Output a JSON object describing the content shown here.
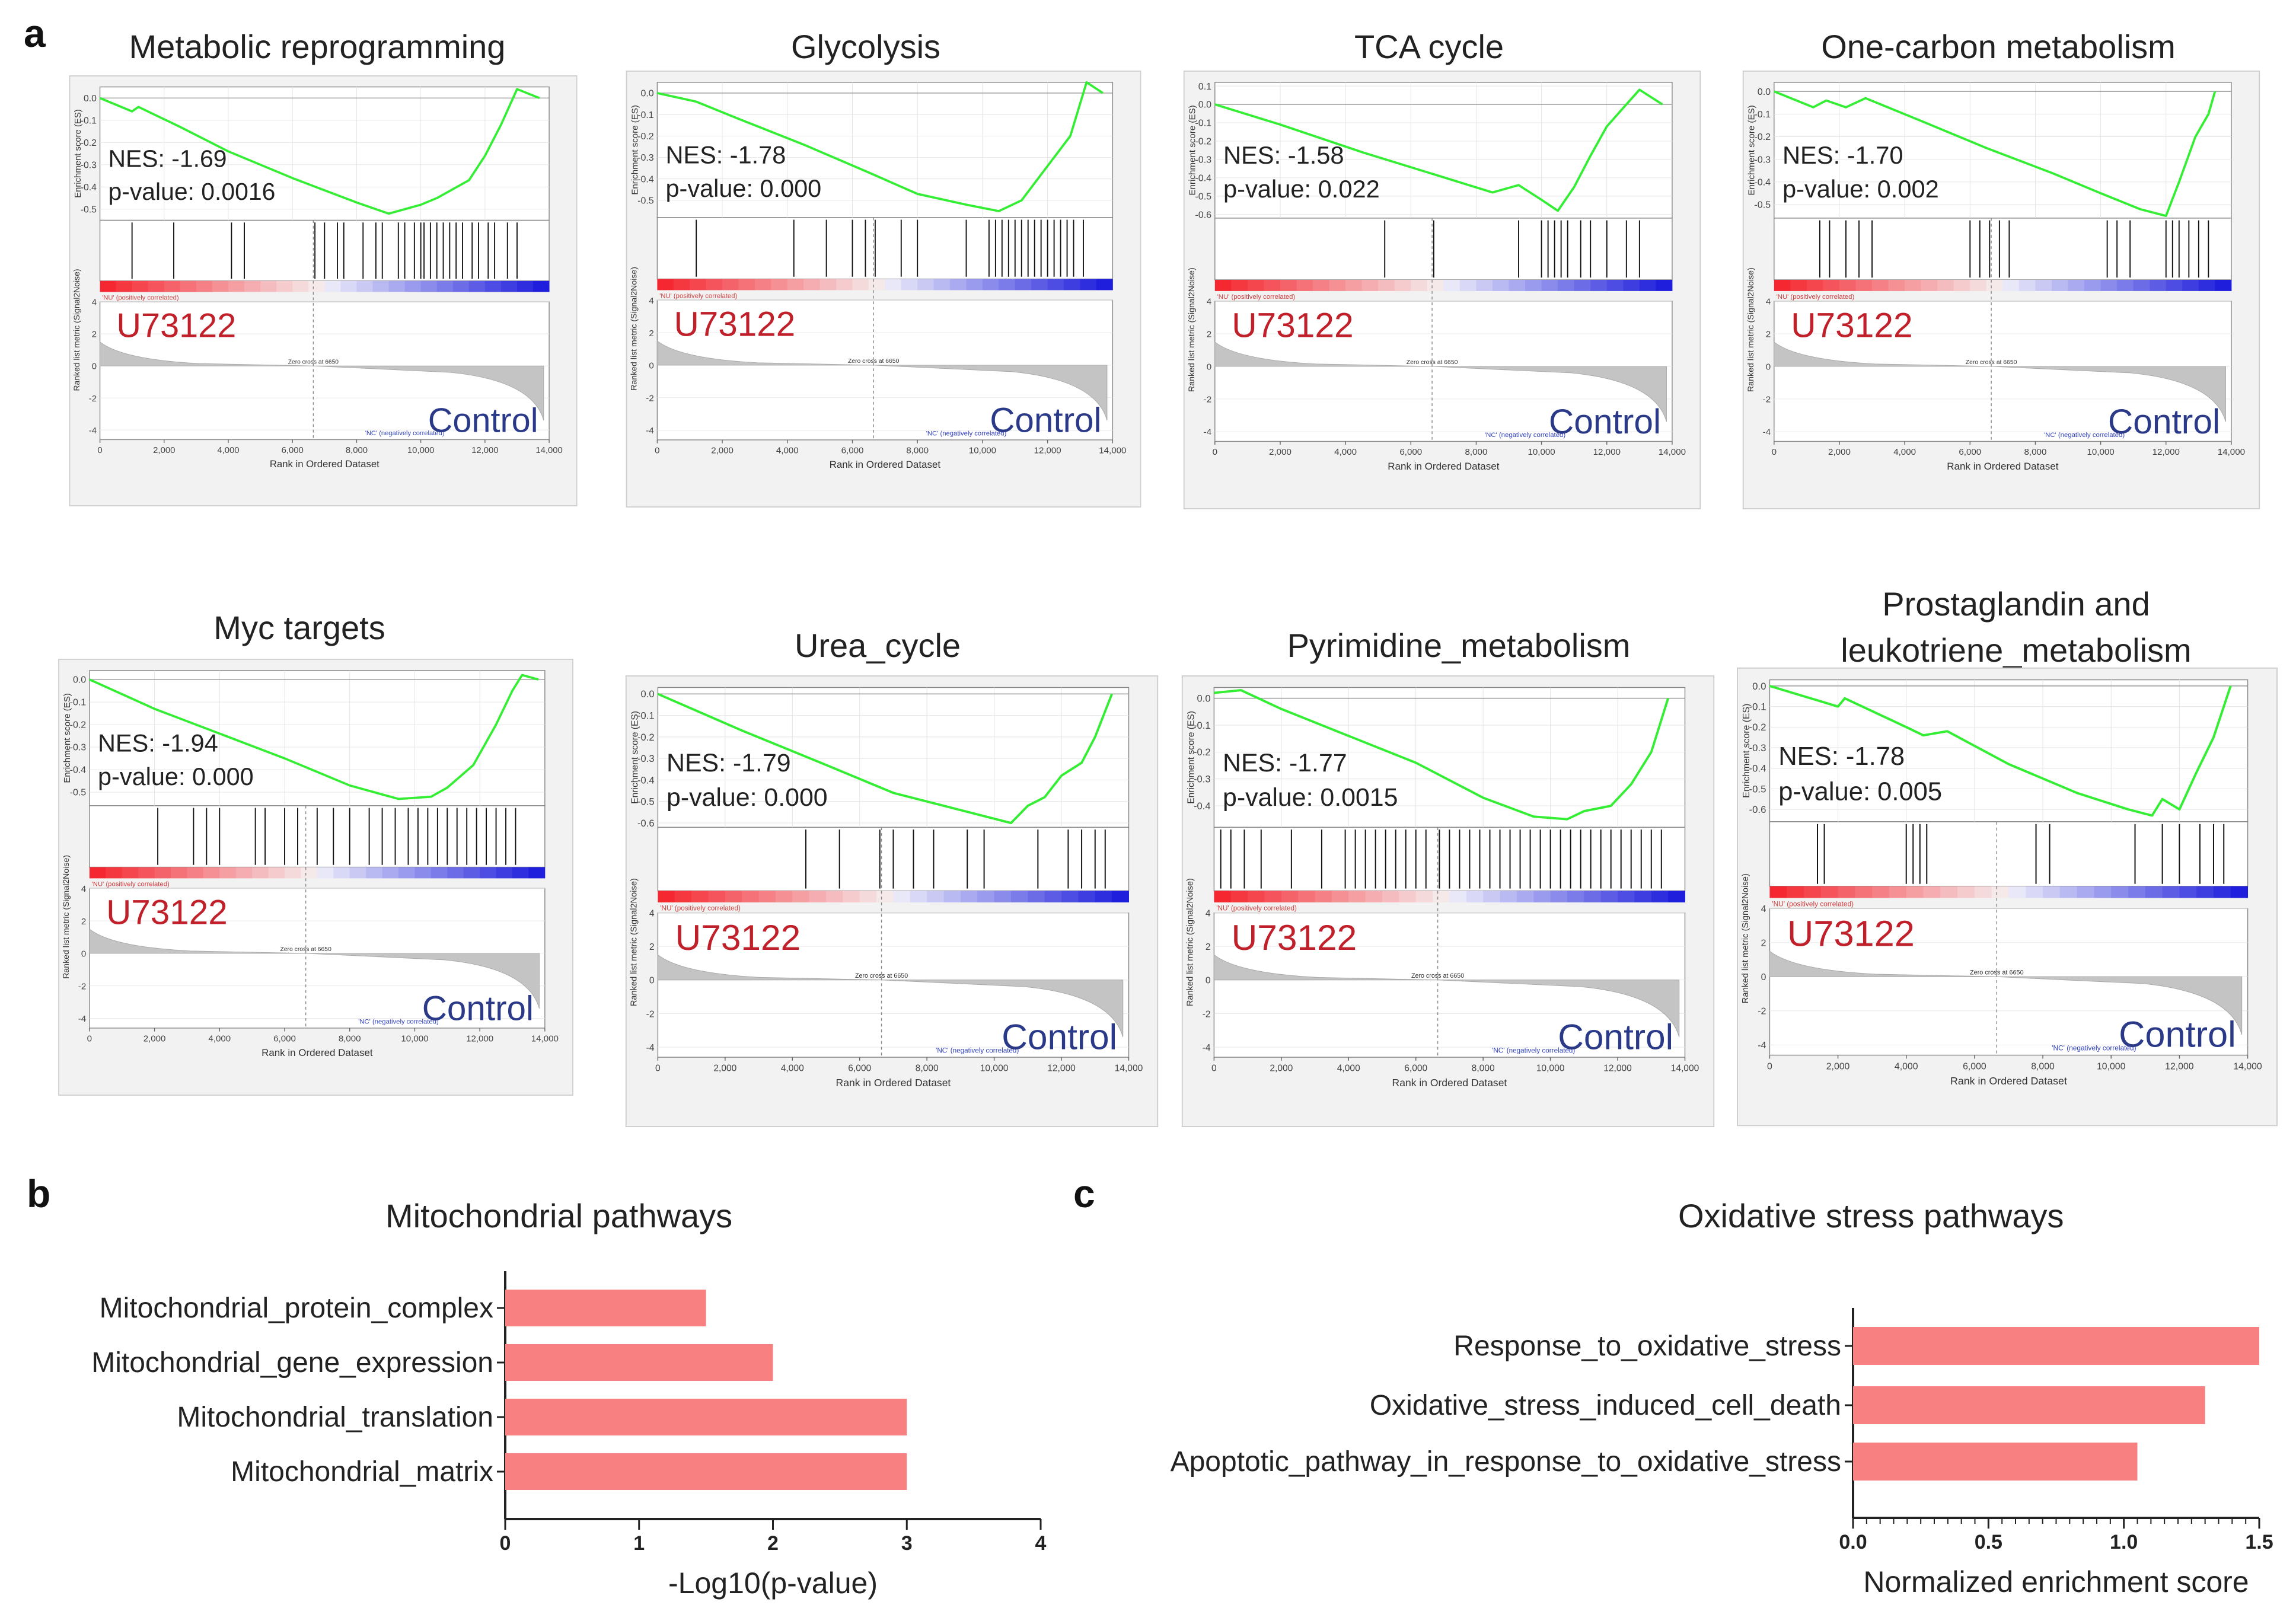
{
  "panel_labels": {
    "a": "a",
    "b": "b",
    "c": "c"
  },
  "gsea_common": {
    "es_axis_label": "Enrichment score (ES)",
    "metric_axis_label": "Ranked list metric (Signal2Noise)",
    "x_axis_label": "Rank in Ordered Dataset",
    "x_ticks": [
      "0",
      "2,000",
      "4,000",
      "6,000",
      "8,000",
      "10,000",
      "12,000",
      "14,000"
    ],
    "metric_ticks": [
      "4",
      "2",
      "0",
      "-2",
      "-4"
    ],
    "pos_corr_label": "'NU' (positively correlated)",
    "neg_corr_label": "'NC' (negatively correlated)",
    "zero_cross_label": "Zero cross at 6650",
    "group_up": "U73122",
    "group_down": "Control",
    "nes_prefix": "NES: ",
    "p_prefix": "p-value: "
  },
  "chart_data": [
    {
      "type": "line",
      "title": "Metabolic reprogramming",
      "nes": "-1.69",
      "p_value": "0.0016",
      "y_ticks": [
        "0.0",
        "-0.1",
        "-0.2",
        "-0.3",
        "-0.4",
        "-0.5"
      ],
      "ylim": [
        -0.55,
        0.05
      ],
      "es_points": [
        [
          0,
          0
        ],
        [
          1000,
          -0.06
        ],
        [
          1200,
          -0.04
        ],
        [
          2500,
          -0.13
        ],
        [
          4000,
          -0.24
        ],
        [
          6000,
          -0.36
        ],
        [
          8000,
          -0.47
        ],
        [
          9000,
          -0.52
        ],
        [
          10000,
          -0.48
        ],
        [
          10500,
          -0.45
        ],
        [
          11500,
          -0.37
        ],
        [
          12000,
          -0.26
        ],
        [
          12500,
          -0.12
        ],
        [
          13000,
          0.04
        ],
        [
          13700,
          0.0
        ]
      ],
      "hits": [
        1000,
        2300,
        4100,
        4500,
        6700,
        7000,
        7400,
        7600,
        8200,
        8600,
        8800,
        9300,
        9500,
        9800,
        10000,
        10100,
        10300,
        10500,
        10700,
        10900,
        11100,
        11300,
        11600,
        11800,
        12100,
        12300,
        12700,
        13000
      ]
    },
    {
      "type": "line",
      "title": "Glycolysis",
      "nes": "-1.78",
      "p_value": "0.000",
      "y_ticks": [
        "0.0",
        "-0.1",
        "-0.2",
        "-0.3",
        "-0.4",
        "-0.5"
      ],
      "ylim": [
        -0.58,
        0.05
      ],
      "es_points": [
        [
          0,
          0
        ],
        [
          1200,
          -0.04
        ],
        [
          2500,
          -0.12
        ],
        [
          4500,
          -0.24
        ],
        [
          6500,
          -0.37
        ],
        [
          8000,
          -0.47
        ],
        [
          9500,
          -0.52
        ],
        [
          10500,
          -0.55
        ],
        [
          11200,
          -0.5
        ],
        [
          11800,
          -0.38
        ],
        [
          12300,
          -0.28
        ],
        [
          12700,
          -0.2
        ],
        [
          13200,
          0.05
        ],
        [
          13700,
          0.0
        ]
      ],
      "hits": [
        1200,
        4200,
        5200,
        6000,
        6400,
        6700,
        7500,
        8000,
        9500,
        10200,
        10400,
        10600,
        10800,
        11000,
        11200,
        11400,
        11600,
        11800,
        12000,
        12200,
        12400,
        12600,
        12800,
        13100
      ]
    },
    {
      "type": "line",
      "title": "TCA cycle",
      "nes": "-1.58",
      "p_value": "0.022",
      "y_ticks": [
        "0.1",
        "0.0",
        "-0.1",
        "-0.2",
        "-0.3",
        "-0.4",
        "-0.5",
        "-0.6"
      ],
      "ylim": [
        -0.62,
        0.12
      ],
      "es_points": [
        [
          0,
          0
        ],
        [
          2000,
          -0.11
        ],
        [
          4500,
          -0.26
        ],
        [
          6500,
          -0.37
        ],
        [
          8500,
          -0.48
        ],
        [
          9300,
          -0.44
        ],
        [
          10000,
          -0.52
        ],
        [
          10500,
          -0.58
        ],
        [
          11000,
          -0.45
        ],
        [
          11500,
          -0.28
        ],
        [
          12000,
          -0.12
        ],
        [
          12600,
          0.0
        ],
        [
          13000,
          0.08
        ],
        [
          13700,
          0.0
        ]
      ],
      "hits": [
        5200,
        6700,
        9300,
        10000,
        10200,
        10400,
        10600,
        10800,
        11200,
        11500,
        12000,
        12600,
        13000
      ]
    },
    {
      "type": "line",
      "title": "One-carbon metabolism",
      "nes": "-1.70",
      "p_value": "0.002",
      "y_ticks": [
        "0.0",
        "-0.1",
        "-0.2",
        "-0.3",
        "-0.4",
        "-0.5"
      ],
      "ylim": [
        -0.56,
        0.04
      ],
      "es_points": [
        [
          0,
          0
        ],
        [
          1200,
          -0.07
        ],
        [
          1600,
          -0.04
        ],
        [
          2200,
          -0.07
        ],
        [
          2800,
          -0.03
        ],
        [
          4500,
          -0.13
        ],
        [
          6500,
          -0.25
        ],
        [
          8500,
          -0.36
        ],
        [
          10000,
          -0.45
        ],
        [
          11200,
          -0.52
        ],
        [
          12000,
          -0.55
        ],
        [
          12400,
          -0.4
        ],
        [
          12900,
          -0.2
        ],
        [
          13300,
          -0.1
        ],
        [
          13500,
          0.0
        ]
      ],
      "hits": [
        1400,
        1700,
        2200,
        2600,
        3000,
        6000,
        6300,
        6600,
        6900,
        7200,
        10200,
        10500,
        10900,
        12000,
        12200,
        12400,
        12700,
        13000,
        13300
      ]
    },
    {
      "type": "line",
      "title": "Myc targets",
      "nes": "-1.94",
      "p_value": "0.000",
      "y_ticks": [
        "0.0",
        "-0.1",
        "-0.2",
        "-0.3",
        "-0.4",
        "-0.5"
      ],
      "ylim": [
        -0.56,
        0.04
      ],
      "es_points": [
        [
          0,
          0
        ],
        [
          2000,
          -0.13
        ],
        [
          4000,
          -0.24
        ],
        [
          6000,
          -0.35
        ],
        [
          8000,
          -0.47
        ],
        [
          9500,
          -0.53
        ],
        [
          10500,
          -0.52
        ],
        [
          11000,
          -0.48
        ],
        [
          11800,
          -0.38
        ],
        [
          12500,
          -0.2
        ],
        [
          13000,
          -0.05
        ],
        [
          13300,
          0.02
        ],
        [
          13800,
          0.0
        ]
      ],
      "hits": [
        2100,
        3200,
        3600,
        4000,
        5100,
        5400,
        6000,
        6400,
        7000,
        7500,
        8000,
        8600,
        9000,
        9400,
        9800,
        10100,
        10400,
        10700,
        11000,
        11300,
        11600,
        11900,
        12200,
        12500,
        12800,
        13100
      ]
    },
    {
      "type": "line",
      "title": "Urea_cycle",
      "nes": "-1.79",
      "p_value": "0.000",
      "y_ticks": [
        "0.0",
        "-0.1",
        "-0.2",
        "-0.3",
        "-0.4",
        "-0.5",
        "-0.6"
      ],
      "ylim": [
        -0.62,
        0.03
      ],
      "es_points": [
        [
          0,
          0
        ],
        [
          2500,
          -0.17
        ],
        [
          5000,
          -0.33
        ],
        [
          7000,
          -0.46
        ],
        [
          9000,
          -0.54
        ],
        [
          10500,
          -0.6
        ],
        [
          11000,
          -0.52
        ],
        [
          11500,
          -0.48
        ],
        [
          12000,
          -0.38
        ],
        [
          12600,
          -0.32
        ],
        [
          13000,
          -0.2
        ],
        [
          13500,
          0.0
        ]
      ],
      "hits": [
        4400,
        5400,
        6600,
        7000,
        7600,
        8200,
        9200,
        9700,
        11300,
        12200,
        12600,
        13000,
        13300
      ]
    },
    {
      "type": "line",
      "title": "Pyrimidine_metabolism",
      "nes": "-1.77",
      "p_value": "0.0015",
      "y_ticks": [
        "0.0",
        "-0.1",
        "-0.2",
        "-0.3",
        "-0.4"
      ],
      "ylim": [
        -0.48,
        0.04
      ],
      "es_points": [
        [
          0,
          0.02
        ],
        [
          800,
          0.03
        ],
        [
          2000,
          -0.04
        ],
        [
          4000,
          -0.14
        ],
        [
          6000,
          -0.24
        ],
        [
          8000,
          -0.37
        ],
        [
          9500,
          -0.44
        ],
        [
          10500,
          -0.45
        ],
        [
          11000,
          -0.42
        ],
        [
          11800,
          -0.4
        ],
        [
          12400,
          -0.32
        ],
        [
          13000,
          -0.2
        ],
        [
          13500,
          0.0
        ]
      ],
      "hits": [
        200,
        500,
        900,
        1400,
        2300,
        3200,
        3900,
        4200,
        4500,
        4800,
        5100,
        5400,
        5700,
        6000,
        6300,
        6700,
        7000,
        7300,
        7600,
        7900,
        8200,
        8500,
        8800,
        9100,
        9400,
        9700,
        10000,
        10300,
        10600,
        10900,
        11200,
        11500,
        11800,
        12100,
        12400,
        12700,
        13000,
        13300
      ]
    },
    {
      "type": "line",
      "title": "Prostaglandin and leukotriene_metabolism",
      "nes": "-1.78",
      "p_value": "0.005",
      "y_ticks": [
        "0.0",
        "-0.1",
        "-0.2",
        "-0.3",
        "-0.4",
        "-0.5",
        "-0.6"
      ],
      "ylim": [
        -0.66,
        0.03
      ],
      "es_points": [
        [
          0,
          0
        ],
        [
          2000,
          -0.1
        ],
        [
          2200,
          -0.06
        ],
        [
          4000,
          -0.2
        ],
        [
          4500,
          -0.24
        ],
        [
          5200,
          -0.22
        ],
        [
          7000,
          -0.38
        ],
        [
          9000,
          -0.52
        ],
        [
          10500,
          -0.6
        ],
        [
          11200,
          -0.63
        ],
        [
          11500,
          -0.55
        ],
        [
          12000,
          -0.6
        ],
        [
          12500,
          -0.42
        ],
        [
          13000,
          -0.25
        ],
        [
          13500,
          0.0
        ]
      ],
      "hits": [
        1400,
        1600,
        4000,
        4200,
        4400,
        4600,
        7800,
        8200,
        10700,
        11500,
        12000,
        12600,
        13000,
        13300
      ]
    },
    {
      "type": "bar",
      "orientation": "horizontal",
      "title": "Mitochondrial pathways",
      "categories": [
        "Mitochondrial_protein_complex",
        "Mitochondrial_gene_expression",
        "Mitochondrial_translation",
        "Mitochondrial_matrix"
      ],
      "values": [
        1.5,
        2.0,
        3.0,
        3.0
      ],
      "xlabel": "-Log10(p-value)",
      "x_ticks": [
        "0",
        "1",
        "2",
        "3",
        "4"
      ],
      "xlim": [
        0,
        4
      ]
    },
    {
      "type": "bar",
      "orientation": "horizontal",
      "title": "Oxidative stress pathways",
      "categories": [
        "Response_to_oxidative_stress",
        "Oxidative_stress_induced_cell_death",
        "Apoptotic_pathway_in_response_to_oxidative_stress"
      ],
      "values": [
        1.5,
        1.3,
        1.05
      ],
      "xlabel": "Normalized  enrichment score",
      "x_ticks": [
        "0.0",
        "0.5",
        "1.0",
        "1.5"
      ],
      "xlim": [
        0,
        1.5
      ]
    }
  ],
  "colors": {
    "es_line": "#33ee33",
    "bar_fill": "#f88080",
    "group_up": "#c0202a",
    "group_down": "#2a3a88"
  }
}
